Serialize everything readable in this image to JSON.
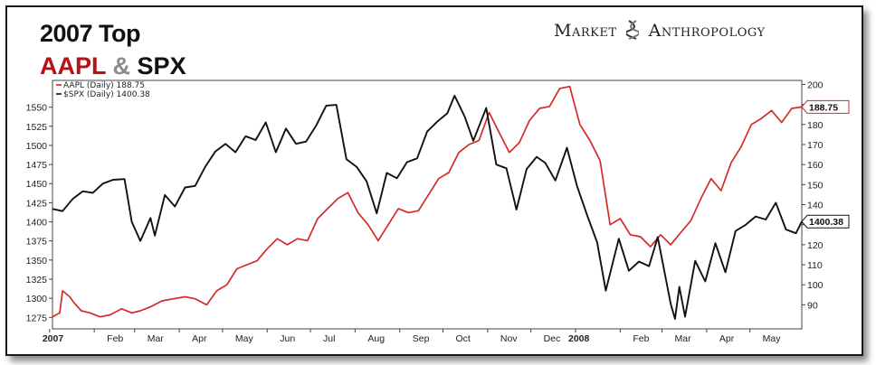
{
  "title": {
    "line1": "2007 Top",
    "aapl": "AAPL",
    "amp": "&",
    "spx": "SPX"
  },
  "brand": {
    "left": "Market",
    "right": "Anthropology",
    "logo_icon": "dna-helix-icon"
  },
  "chart_data": {
    "type": "line",
    "x_ticks": [
      "2007",
      "Feb",
      "Mar",
      "Apr",
      "May",
      "Jun",
      "Jul",
      "Aug",
      "Sep",
      "Oct",
      "Nov",
      "Dec",
      "2008",
      "Feb",
      "Mar",
      "Apr",
      "May"
    ],
    "x_tick_dates": [
      "2007-01-01",
      "2007-02-01",
      "2007-03-01",
      "2007-04-01",
      "2007-05-01",
      "2007-06-01",
      "2007-07-01",
      "2007-08-01",
      "2007-09-01",
      "2007-10-01",
      "2007-11-01",
      "2007-12-01",
      "2008-01-01",
      "2008-02-01",
      "2008-03-01",
      "2008-04-01",
      "2008-05-01"
    ],
    "x_range": [
      "2007-01-03",
      "2008-06-06"
    ],
    "left_axis": {
      "label": "",
      "range": [
        1260,
        1585
      ],
      "ticks": [
        1275,
        1300,
        1325,
        1350,
        1375,
        1400,
        1425,
        1450,
        1475,
        1500,
        1525,
        1550
      ]
    },
    "right_axis": {
      "label": "",
      "range": [
        78,
        202
      ],
      "ticks": [
        90,
        100,
        110,
        120,
        130,
        140,
        150,
        160,
        170,
        180,
        190,
        200
      ]
    },
    "grid": false,
    "legend_position": "top-left",
    "series": [
      {
        "name": "AAPL (Daily) 188.75",
        "axis": "right",
        "color": "#d42a2a",
        "last_label": "188.75",
        "points": [
          [
            "2007-01-03",
            84
          ],
          [
            "2007-01-08",
            86
          ],
          [
            "2007-01-10",
            97
          ],
          [
            "2007-01-15",
            94
          ],
          [
            "2007-01-18",
            91
          ],
          [
            "2007-01-23",
            87
          ],
          [
            "2007-01-29",
            86
          ],
          [
            "2007-02-05",
            84
          ],
          [
            "2007-02-12",
            85
          ],
          [
            "2007-02-20",
            88
          ],
          [
            "2007-02-27",
            86
          ],
          [
            "2007-03-05",
            87
          ],
          [
            "2007-03-12",
            89
          ],
          [
            "2007-03-20",
            92
          ],
          [
            "2007-03-28",
            93
          ],
          [
            "2007-04-05",
            94
          ],
          [
            "2007-04-12",
            93
          ],
          [
            "2007-04-20",
            90
          ],
          [
            "2007-04-27",
            97
          ],
          [
            "2007-05-04",
            100
          ],
          [
            "2007-05-11",
            108
          ],
          [
            "2007-05-18",
            110
          ],
          [
            "2007-05-25",
            112
          ],
          [
            "2007-06-01",
            118
          ],
          [
            "2007-06-08",
            123
          ],
          [
            "2007-06-15",
            120
          ],
          [
            "2007-06-22",
            123
          ],
          [
            "2007-06-29",
            122
          ],
          [
            "2007-07-06",
            133
          ],
          [
            "2007-07-13",
            138
          ],
          [
            "2007-07-20",
            143
          ],
          [
            "2007-07-27",
            146
          ],
          [
            "2007-08-03",
            136
          ],
          [
            "2007-08-10",
            130
          ],
          [
            "2007-08-17",
            122
          ],
          [
            "2007-08-24",
            130
          ],
          [
            "2007-08-31",
            138
          ],
          [
            "2007-09-07",
            136
          ],
          [
            "2007-09-14",
            137
          ],
          [
            "2007-09-21",
            145
          ],
          [
            "2007-09-28",
            153
          ],
          [
            "2007-10-05",
            156
          ],
          [
            "2007-10-12",
            166
          ],
          [
            "2007-10-19",
            170
          ],
          [
            "2007-10-26",
            172
          ],
          [
            "2007-11-02",
            186
          ],
          [
            "2007-11-09",
            176
          ],
          [
            "2007-11-16",
            166
          ],
          [
            "2007-11-23",
            171
          ],
          [
            "2007-11-30",
            182
          ],
          [
            "2007-12-07",
            188
          ],
          [
            "2007-12-14",
            189
          ],
          [
            "2007-12-21",
            198
          ],
          [
            "2007-12-28",
            199
          ],
          [
            "2008-01-04",
            180
          ],
          [
            "2008-01-11",
            172
          ],
          [
            "2008-01-18",
            162
          ],
          [
            "2008-01-25",
            130
          ],
          [
            "2008-02-01",
            133
          ],
          [
            "2008-02-08",
            125
          ],
          [
            "2008-02-15",
            124
          ],
          [
            "2008-02-22",
            119
          ],
          [
            "2008-02-29",
            125
          ],
          [
            "2008-03-07",
            120
          ],
          [
            "2008-03-14",
            126
          ],
          [
            "2008-03-21",
            132
          ],
          [
            "2008-03-28",
            143
          ],
          [
            "2008-04-04",
            153
          ],
          [
            "2008-04-11",
            147
          ],
          [
            "2008-04-18",
            161
          ],
          [
            "2008-04-25",
            169
          ],
          [
            "2008-05-02",
            180
          ],
          [
            "2008-05-09",
            183
          ],
          [
            "2008-05-16",
            187
          ],
          [
            "2008-05-23",
            181
          ],
          [
            "2008-05-30",
            188
          ],
          [
            "2008-06-06",
            188.75
          ]
        ]
      },
      {
        "name": "$SPX (Daily) 1400.38",
        "axis": "left",
        "color": "#111111",
        "last_label": "1400.38",
        "points": [
          [
            "2007-01-03",
            1417
          ],
          [
            "2007-01-10",
            1414
          ],
          [
            "2007-01-17",
            1430
          ],
          [
            "2007-01-24",
            1440
          ],
          [
            "2007-01-31",
            1438
          ],
          [
            "2007-02-07",
            1450
          ],
          [
            "2007-02-14",
            1455
          ],
          [
            "2007-02-22",
            1456
          ],
          [
            "2007-02-27",
            1400
          ],
          [
            "2007-03-05",
            1375
          ],
          [
            "2007-03-12",
            1405
          ],
          [
            "2007-03-15",
            1382
          ],
          [
            "2007-03-22",
            1435
          ],
          [
            "2007-03-29",
            1420
          ],
          [
            "2007-04-05",
            1445
          ],
          [
            "2007-04-12",
            1447
          ],
          [
            "2007-04-19",
            1472
          ],
          [
            "2007-04-26",
            1492
          ],
          [
            "2007-05-03",
            1502
          ],
          [
            "2007-05-10",
            1491
          ],
          [
            "2007-05-17",
            1512
          ],
          [
            "2007-05-24",
            1507
          ],
          [
            "2007-05-31",
            1530
          ],
          [
            "2007-06-07",
            1491
          ],
          [
            "2007-06-14",
            1522
          ],
          [
            "2007-06-21",
            1502
          ],
          [
            "2007-06-28",
            1505
          ],
          [
            "2007-07-05",
            1526
          ],
          [
            "2007-07-12",
            1552
          ],
          [
            "2007-07-19",
            1553
          ],
          [
            "2007-07-26",
            1482
          ],
          [
            "2007-08-02",
            1472
          ],
          [
            "2007-08-09",
            1453
          ],
          [
            "2007-08-16",
            1411
          ],
          [
            "2007-08-23",
            1464
          ],
          [
            "2007-08-30",
            1457
          ],
          [
            "2007-09-06",
            1478
          ],
          [
            "2007-09-13",
            1483
          ],
          [
            "2007-09-20",
            1518
          ],
          [
            "2007-09-27",
            1531
          ],
          [
            "2007-10-04",
            1542
          ],
          [
            "2007-10-09",
            1565
          ],
          [
            "2007-10-16",
            1538
          ],
          [
            "2007-10-22",
            1506
          ],
          [
            "2007-10-31",
            1549
          ],
          [
            "2007-11-07",
            1475
          ],
          [
            "2007-11-14",
            1470
          ],
          [
            "2007-11-21",
            1416
          ],
          [
            "2007-11-28",
            1469
          ],
          [
            "2007-12-05",
            1485
          ],
          [
            "2007-12-11",
            1477
          ],
          [
            "2007-12-18",
            1454
          ],
          [
            "2007-12-26",
            1497
          ],
          [
            "2008-01-02",
            1447
          ],
          [
            "2008-01-09",
            1409
          ],
          [
            "2008-01-16",
            1373
          ],
          [
            "2008-01-22",
            1310
          ],
          [
            "2008-01-31",
            1378
          ],
          [
            "2008-02-07",
            1336
          ],
          [
            "2008-02-14",
            1348
          ],
          [
            "2008-02-21",
            1342
          ],
          [
            "2008-02-27",
            1380
          ],
          [
            "2008-03-07",
            1293
          ],
          [
            "2008-03-10",
            1273
          ],
          [
            "2008-03-13",
            1315
          ],
          [
            "2008-03-17",
            1276
          ],
          [
            "2008-03-24",
            1349
          ],
          [
            "2008-03-31",
            1322
          ],
          [
            "2008-04-07",
            1372
          ],
          [
            "2008-04-14",
            1334
          ],
          [
            "2008-04-21",
            1388
          ],
          [
            "2008-04-28",
            1396
          ],
          [
            "2008-05-05",
            1407
          ],
          [
            "2008-05-12",
            1403
          ],
          [
            "2008-05-19",
            1425
          ],
          [
            "2008-05-26",
            1390
          ],
          [
            "2008-06-02",
            1385
          ],
          [
            "2008-06-06",
            1400.38
          ]
        ]
      }
    ]
  }
}
